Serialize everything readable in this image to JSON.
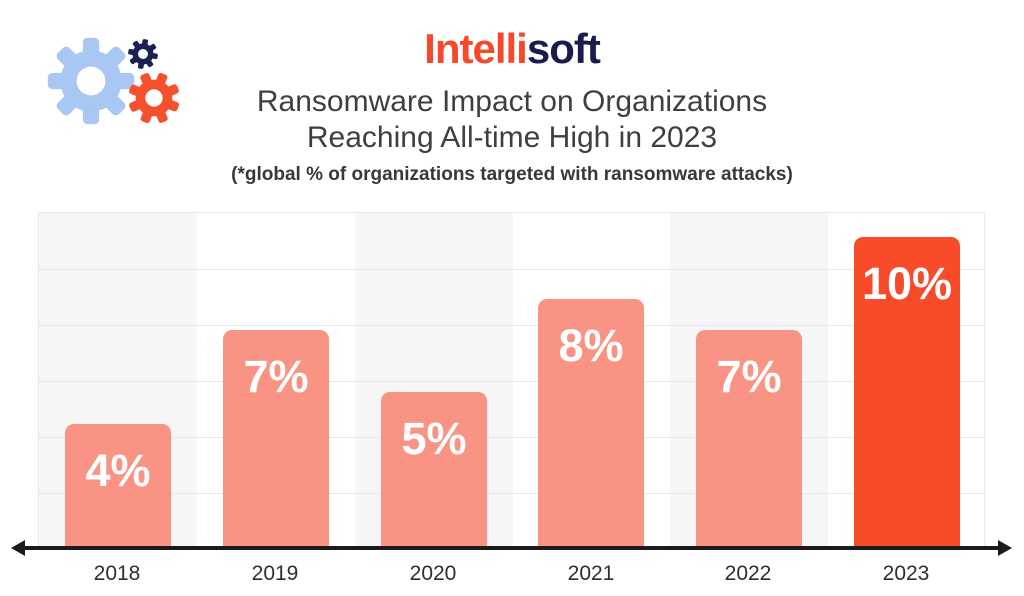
{
  "header": {
    "brand_part1": "Intelli",
    "brand_part2": "soft",
    "title_line1": "Ransomware Impact on Organizations",
    "title_line2": "Reaching All-time High in 2023",
    "subtitle": "(*global % of organizations targeted with ransomware attacks)"
  },
  "logo": {
    "icon": "three-gears-icon"
  },
  "palette": {
    "brand-red": "#F6492C",
    "brand-navy": "#181C4F",
    "title-text": "#3F3F3F",
    "subtitle-text": "#383838",
    "gear-blue": "#A9C7F3",
    "gear-navy": "#1B1F51",
    "gear-orange": "#F6512E",
    "bar": "#F99484",
    "bar-highlight": "#F74B2A",
    "bar-label": "#FFFFFF",
    "stripe": "#F6F6F7",
    "gridline": "#E9E9E9",
    "axis": "#1B1B1B",
    "tick-text": "#2F2F2F"
  },
  "chart_data": {
    "type": "bar",
    "title": "Ransomware Impact on Organizations Reaching All-time High in 2023",
    "subtitle": "(*global % of organizations targeted with ransomware attacks)",
    "categories": [
      "2018",
      "2019",
      "2020",
      "2021",
      "2022",
      "2023"
    ],
    "values": [
      4,
      7,
      5,
      8,
      7,
      10
    ],
    "data_labels": [
      "4%",
      "7%",
      "5%",
      "8%",
      "7%",
      "10%"
    ],
    "unit": "%",
    "xlabel": "",
    "ylabel": "",
    "ylim": [
      0,
      10.8
    ],
    "grid": "horizontal-gridlines",
    "gridline_count": 6,
    "legend": "none",
    "background_stripes": "alternating vertical column bands, gray on even columns",
    "highlight_category": "2023",
    "highlight_note": "2023 bar emphasized in saturated red, other bars salmon",
    "x_axis_style": "black double-headed arrow line"
  }
}
